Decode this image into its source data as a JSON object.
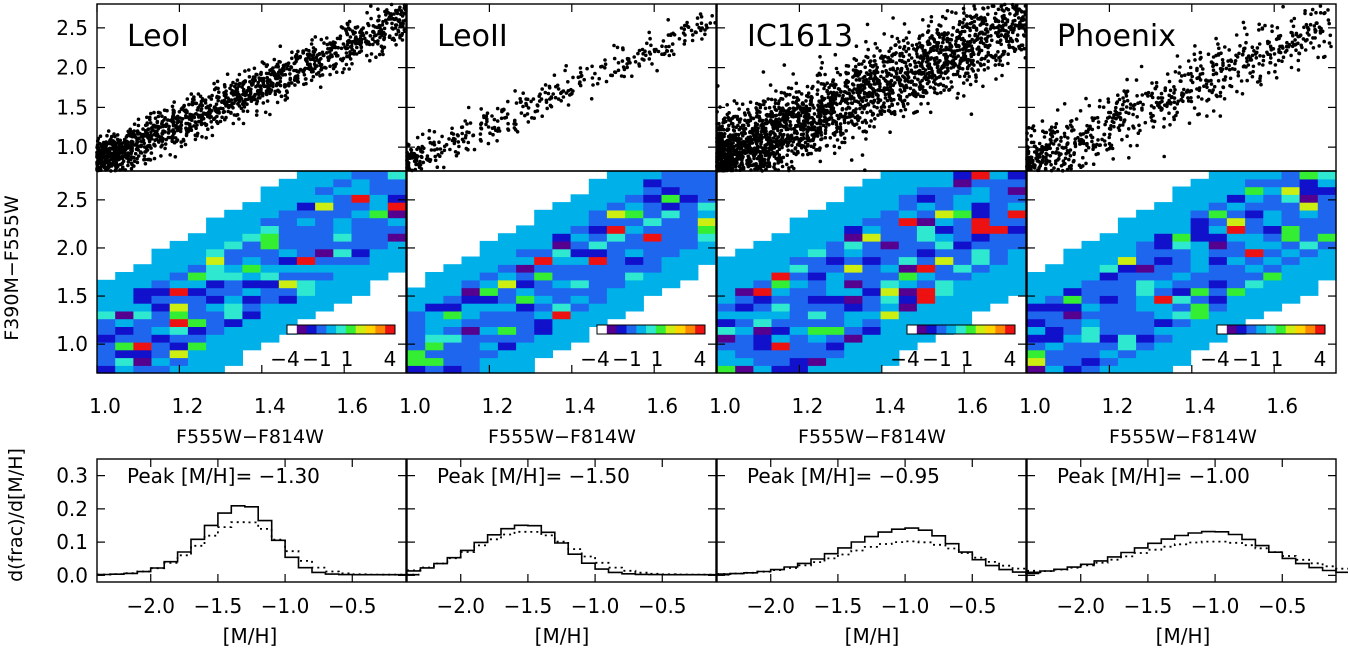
{
  "figure": {
    "ylabel_top": "F390M−F555W",
    "xlabel_mid": "F555W−F814W",
    "ylabel_bottom": "d(frac)/d[M/H]",
    "xlabel_bottom": "[M/H]"
  },
  "chart_data": [
    {
      "type": "scatter",
      "row": "cmd-points",
      "xlim": [
        1.0,
        1.75
      ],
      "ylim": [
        0.7,
        2.8
      ],
      "yticks": [
        "1.0",
        "1.5",
        "2.0",
        "2.5"
      ],
      "panels": [
        {
          "name": "LeoI",
          "n_points": 1400,
          "spread": 0.14
        },
        {
          "name": "LeoII",
          "n_points": 380,
          "spread": 0.12
        },
        {
          "name": "IC1613",
          "n_points": 2600,
          "spread": 0.26
        },
        {
          "name": "Phoenix",
          "n_points": 750,
          "spread": 0.2
        }
      ],
      "trend": {
        "x0": 1.0,
        "y0": 0.8,
        "slope": 2.55
      }
    },
    {
      "type": "heatmap",
      "row": "residual-maps",
      "xlim": [
        1.0,
        1.75
      ],
      "ylim": [
        0.7,
        2.8
      ],
      "xticks": [
        "1.0",
        "1.2",
        "1.4",
        "1.6"
      ],
      "yticks": [
        "1.0",
        "1.5",
        "2.0",
        "2.5"
      ],
      "colorbar": {
        "min": -4,
        "max": 4,
        "tick_labels": [
          "−4",
          "−1",
          "1",
          "4"
        ]
      },
      "colormap": [
        "#ffffff",
        "#55008f",
        "#1111cc",
        "#1f66ee",
        "#00b0e8",
        "#2ee8d0",
        "#33ee33",
        "#ccee11",
        "#ffd400",
        "#ff8800",
        "#ee1111"
      ]
    },
    {
      "type": "line",
      "row": "mdf",
      "xlim": [
        -2.4,
        -0.1
      ],
      "ylim": [
        -0.02,
        0.35
      ],
      "xticks": [
        "−2.0",
        "−1.5",
        "−1.0",
        "−0.5"
      ],
      "yticks": [
        "0.0",
        "0.1",
        "0.2",
        "0.3"
      ],
      "peak_prefix": "Peak [M/H]=",
      "panels": [
        {
          "name": "LeoI",
          "peak": "−1.30",
          "center": -1.3,
          "sigma": 0.24,
          "height": 0.21,
          "dotted_height": 0.16
        },
        {
          "name": "LeoII",
          "peak": "−1.50",
          "center": -1.5,
          "sigma": 0.3,
          "height": 0.15,
          "dotted_height": 0.13
        },
        {
          "name": "IC1613",
          "peak": "−0.95",
          "center": -0.95,
          "sigma": 0.38,
          "height": 0.14,
          "dotted_height": 0.1
        },
        {
          "name": "Phoenix",
          "peak": "−1.00",
          "center": -1.0,
          "sigma": 0.45,
          "height": 0.13,
          "dotted_height": 0.1
        }
      ]
    }
  ]
}
